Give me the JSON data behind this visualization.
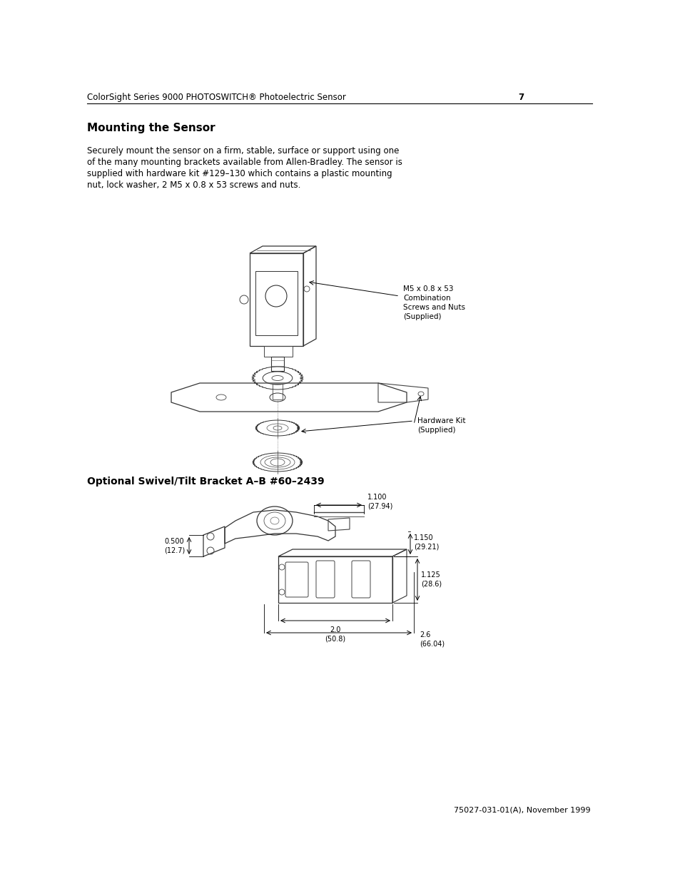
{
  "page_bg": "#ffffff",
  "header_text": "ColorSight Series 9000 PHOTOSWITCH® Photoelectric Sensor",
  "header_page_num": "7",
  "section_title": "Mounting the Sensor",
  "body_text_line1": "Securely mount the sensor on a firm, stable, surface or support using one",
  "body_text_line2": "of the many mounting brackets available from Allen-Bradley. The sensor is",
  "body_text_line3": "supplied with hardware kit #129–130 which contains a plastic mounting",
  "body_text_line4": "nut, lock washer, 2 M5 x 0.8 x 53 screws and nuts.",
  "diagram1_label1_lines": [
    "M5 x 0.8 x 53",
    "Combination",
    "Screws and Nuts",
    "(Supplied)"
  ],
  "diagram1_label2_lines": [
    "Hardware Kit",
    "(Supplied)"
  ],
  "optional_title": "Optional Swivel/Tilt Bracket A–B #60–2439",
  "dim_1100": "1.100\n(27.94)",
  "dim_1150": "1.150\n(29.21)",
  "dim_1125": "1.125\n(28.6)",
  "dim_0500": "0.500\n(12.7)",
  "dim_20": "2.0\n(50.8)",
  "dim_26": "2.6\n(66.04)",
  "footer_text": "75027-031-01(A), November 1999"
}
